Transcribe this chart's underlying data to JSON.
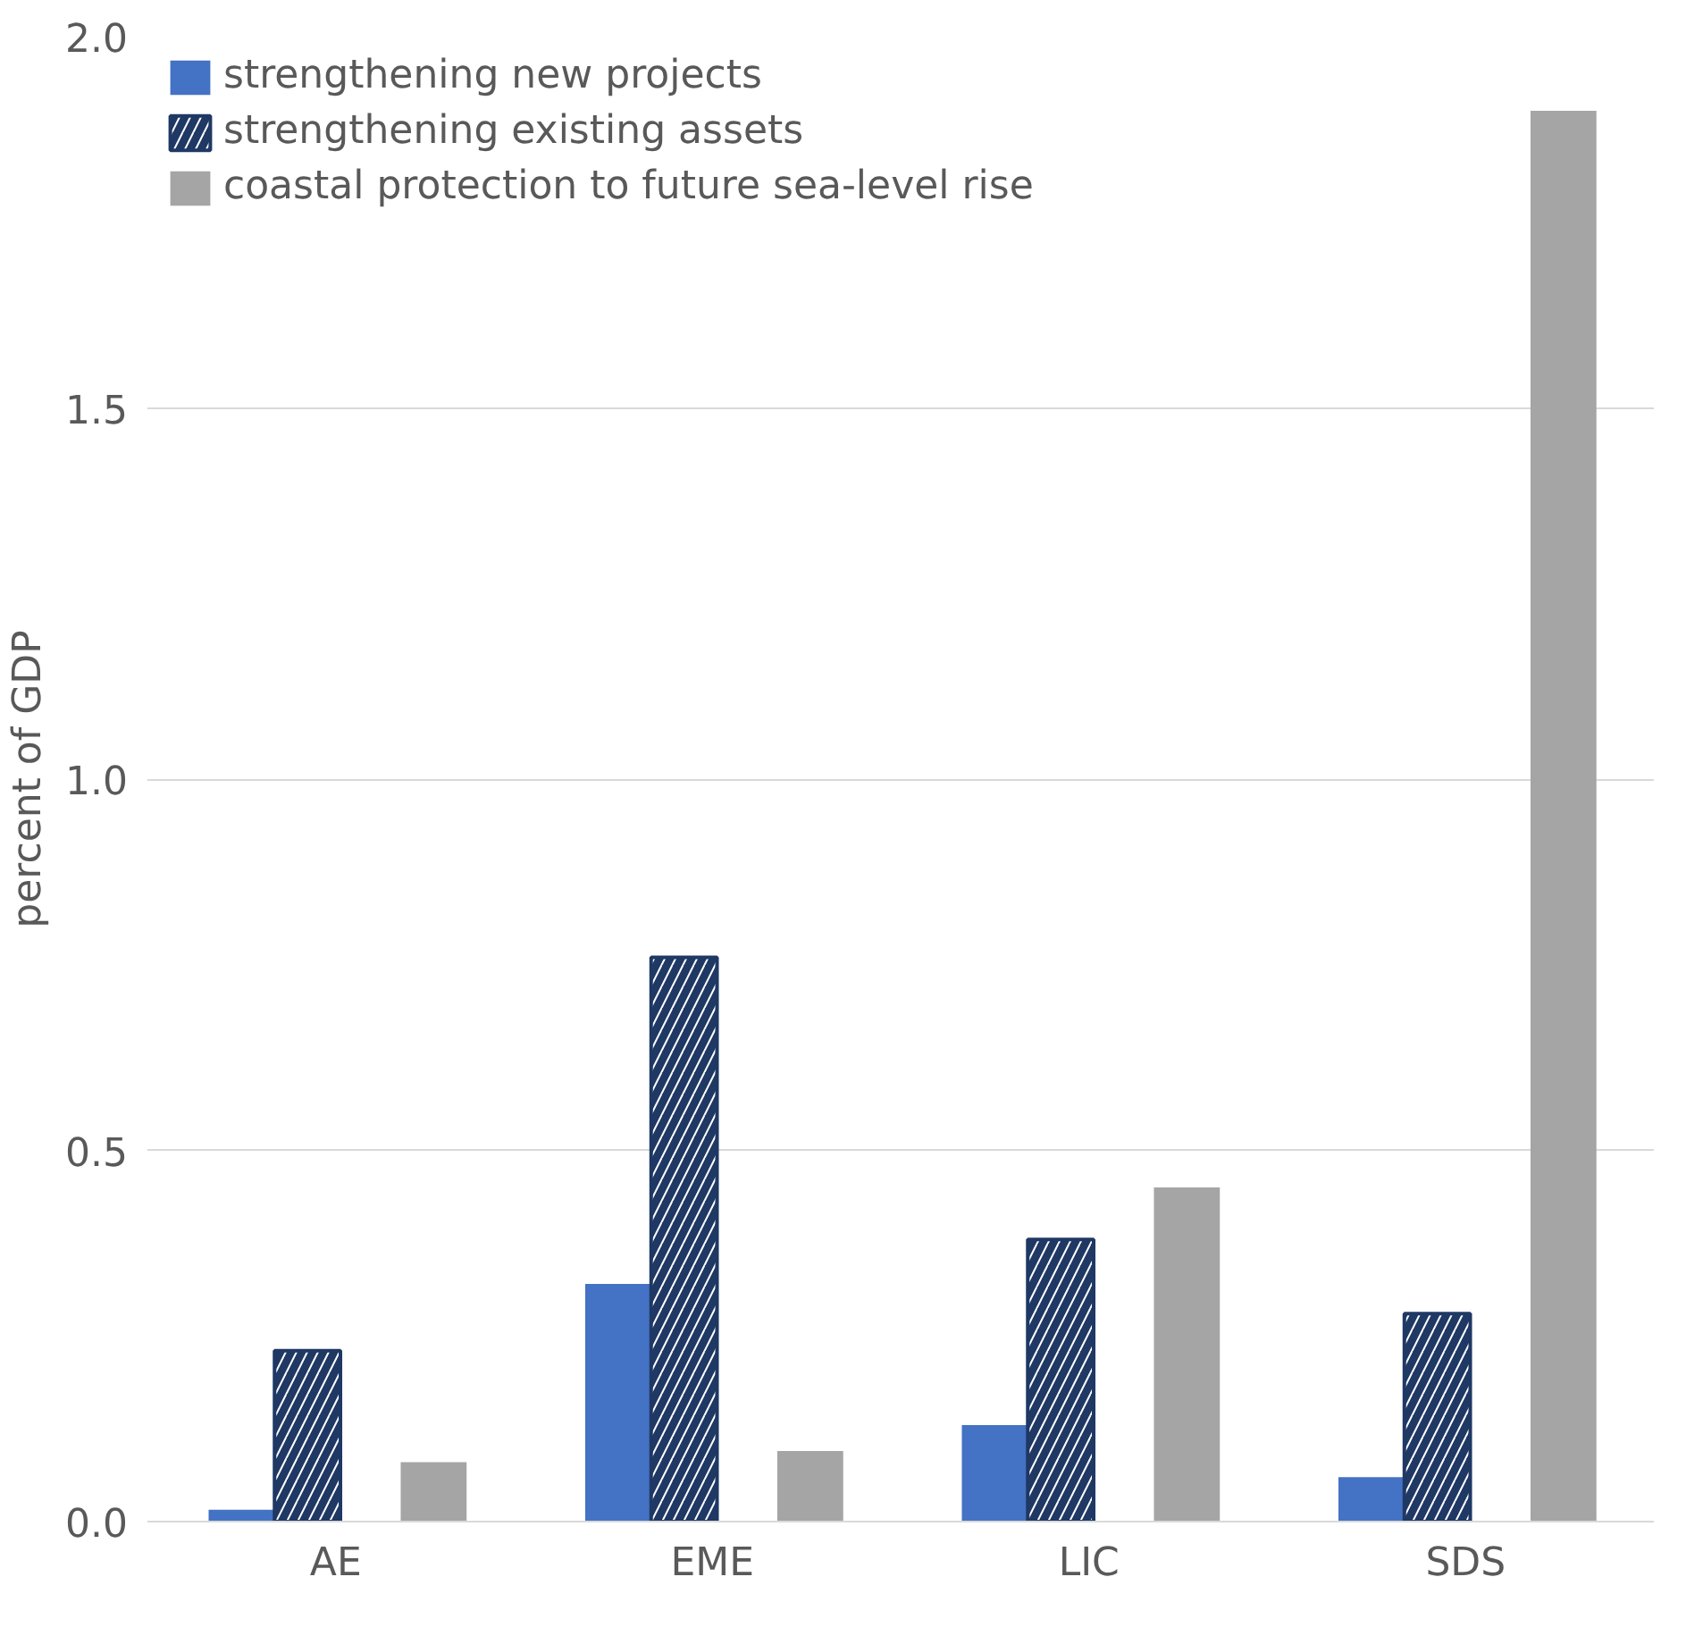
{
  "chart_data": {
    "type": "bar",
    "ylabel": "percent of GDP",
    "categories": [
      "AE",
      "EME",
      "LIC",
      "SDS"
    ],
    "series": [
      {
        "name": "strengthening new projects",
        "color": "#4472c4",
        "values": [
          0.016,
          0.32,
          0.13,
          0.06
        ]
      },
      {
        "name": "strengthening existing assets",
        "color": "#1f3864",
        "values": [
          0.23,
          0.76,
          0.38,
          0.28
        ]
      },
      {
        "name": "coastal protection to future sea-level rise",
        "color": "#a5a5a5",
        "values": [
          0.08,
          0.095,
          0.45,
          1.9
        ]
      }
    ],
    "ylim": [
      0,
      2.0
    ],
    "yticks": [
      {
        "value": 0,
        "label": "0.0"
      },
      {
        "value": 0.5,
        "label": "0.5"
      },
      {
        "value": 1.0,
        "label": "1.0"
      },
      {
        "value": 1.5,
        "label": "1.5"
      },
      {
        "value": 2.0,
        "label": "2.0"
      }
    ],
    "grid": "y",
    "legend": "top left"
  }
}
